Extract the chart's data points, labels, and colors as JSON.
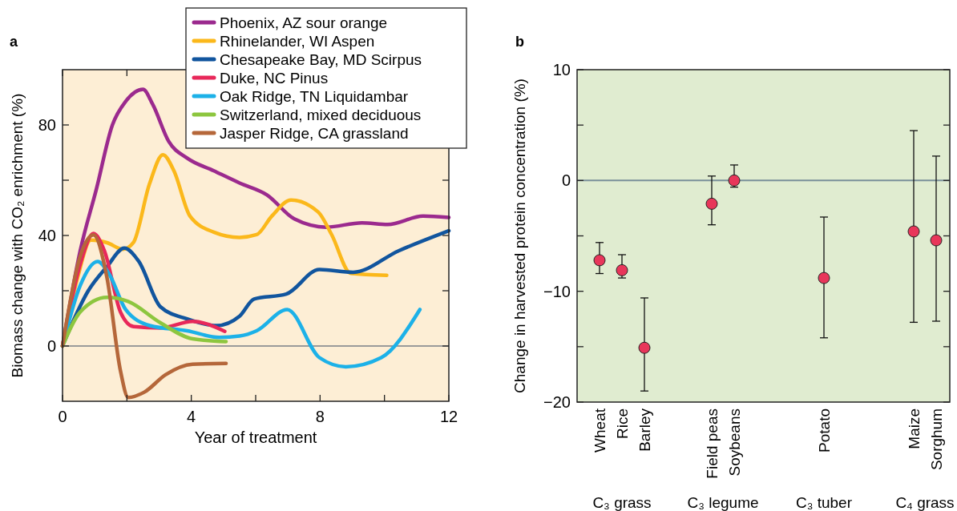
{
  "chart_data": [
    {
      "type": "line",
      "title": "a",
      "xlabel": "Year of treatment",
      "ylabel": "Biomass change with CO₂ enrichment (%)",
      "xlim": [
        0,
        12
      ],
      "xticks": [
        0,
        {
          "value": 2,
          "label": null
        },
        4,
        {
          "value": 6,
          "label": null
        },
        8,
        {
          "value": 10,
          "label": null
        },
        12
      ],
      "ylim": [
        -20,
        100
      ],
      "yticks": [
        0,
        {
          "value": 20,
          "label": null
        },
        40,
        {
          "value": 60,
          "label": null
        },
        80
      ],
      "legend": "top right",
      "ref_lines": [
        {
          "axis": "y",
          "value": 0,
          "color": "#9a9a9a"
        }
      ],
      "series": [
        {
          "name": "Phoenix, AZ  sour orange",
          "color": "#9b2a8e",
          "x": [
            0,
            0.55,
            1.05,
            1.55,
            1.96,
            2.5,
            2.8,
            3.3,
            3.87,
            4.7,
            5.5,
            6.35,
            7.2,
            8.2,
            9.3,
            10.1,
            11.2,
            12
          ],
          "values": [
            0,
            34.5,
            56.7,
            80,
            88.5,
            92.9,
            87.5,
            74,
            68,
            63.4,
            59,
            54.7,
            46,
            43,
            44.6,
            44,
            47,
            46.5
          ]
        },
        {
          "name": "Rhinelander, WI  Aspen",
          "color": "#fbb81b",
          "x": [
            0,
            0.47,
            0.88,
            1.38,
            1.88,
            2.2,
            2.7,
            3.12,
            3.46,
            3.96,
            4.7,
            5.5,
            6.03,
            6.5,
            7.1,
            7.94,
            8.36,
            8.95,
            10.07
          ],
          "values": [
            0,
            24.8,
            38.3,
            37.4,
            35,
            37.4,
            58.6,
            69.2,
            63.4,
            47,
            41.2,
            39.3,
            40.3,
            47,
            52.8,
            48.5,
            40.3,
            26.3,
            25.6
          ]
        },
        {
          "name": "Chesapeake Bay, MD  Scirpus",
          "color": "#11559e",
          "x": [
            0,
            0.8,
            1.38,
            1.92,
            2.37,
            3.04,
            3.87,
            4.79,
            5.5,
            5.95,
            6.95,
            7.98,
            9.03,
            10.45,
            12
          ],
          "values": [
            0,
            20,
            28.7,
            35.4,
            30.6,
            14.2,
            9.8,
            7.4,
            10.8,
            17,
            18.8,
            27.7,
            26.7,
            34.5,
            41.7
          ]
        },
        {
          "name": "Duke, NC  Pinus",
          "color": "#e8285a",
          "x": [
            0,
            0.55,
            0.96,
            1.3,
            1.8,
            2.21,
            3.04,
            4.04,
            5.04
          ],
          "values": [
            0,
            29.6,
            40.7,
            34.5,
            12.3,
            7,
            6.5,
            8.9,
            5.3
          ]
        },
        {
          "name": "Oak Ridge, TN  Liquidambar",
          "color": "#1cb1e8",
          "x": [
            0,
            0.55,
            1.09,
            1.46,
            1.96,
            2.71,
            3.87,
            4.87,
            5.5,
            6.03,
            6.98,
            7.98,
            8.8,
            9.9,
            11.1
          ],
          "values": [
            0,
            21.9,
            30.6,
            25.8,
            13.2,
            7.4,
            5.5,
            3.1,
            3.6,
            5.5,
            13.2,
            -4.2,
            -7.5,
            -4.2,
            13.2
          ]
        },
        {
          "name": "Switzerland, mixed deciduous",
          "color": "#8dc63f",
          "x": [
            0,
            0.55,
            1.38,
            2.04,
            3.04,
            4.04,
            5.08
          ],
          "values": [
            0,
            12.3,
            17.6,
            16.1,
            8.4,
            2.6,
            1.6
          ]
        },
        {
          "name": "Jasper Ridge, CA  grassland",
          "color": "#b5673a",
          "x": [
            0,
            0.55,
            0.96,
            1.38,
            1.8,
            2.04,
            2.54,
            3.2,
            4.04,
            5.08
          ],
          "values": [
            0,
            32.5,
            40.2,
            24.8,
            -9,
            -18.6,
            -16.7,
            -10.4,
            -6.6,
            -6.3
          ]
        }
      ]
    },
    {
      "type": "scatter",
      "title": "b",
      "ylabel": "Change in harvested protein concentration (%)",
      "categories": [
        "Wheat",
        "Rice",
        "Barley",
        null,
        null,
        "Field peas",
        "Soybeans",
        null,
        null,
        null,
        "Potato",
        null,
        null,
        null,
        "Maize",
        "Sorghum"
      ],
      "ylim": [
        -20,
        10
      ],
      "yticks": [
        {
          "value": -20,
          "label": "−20"
        },
        {
          "value": -15,
          "label": null
        },
        {
          "value": -10,
          "label": "−10"
        },
        {
          "value": -5,
          "label": null
        },
        0,
        {
          "value": 5,
          "label": null
        },
        10
      ],
      "marker": "circle",
      "ref_lines": [
        {
          "axis": "y",
          "value": 0,
          "color": "#7a909a"
        }
      ],
      "annotations": [
        "C₃ grass",
        "C₃ legume",
        "C₃ tuber",
        "C₄ grass"
      ],
      "series": [
        {
          "color": "#e8365a",
          "values": [
            -7.2,
            -8.1,
            -15.1,
            null,
            null,
            -2.1,
            0,
            null,
            null,
            null,
            -8.8,
            null,
            null,
            null,
            -4.6,
            -5.4
          ],
          "errors": [
            [
              -8.4,
              -5.6
            ],
            [
              -8.8,
              -6.7
            ],
            [
              -19.0,
              -10.6
            ],
            null,
            null,
            [
              -4.0,
              0.4
            ],
            [
              -0.6,
              1.4
            ],
            null,
            null,
            null,
            [
              -14.2,
              -3.3
            ],
            null,
            null,
            null,
            [
              -12.8,
              4.5
            ],
            [
              -12.7,
              2.2
            ]
          ]
        }
      ]
    }
  ]
}
